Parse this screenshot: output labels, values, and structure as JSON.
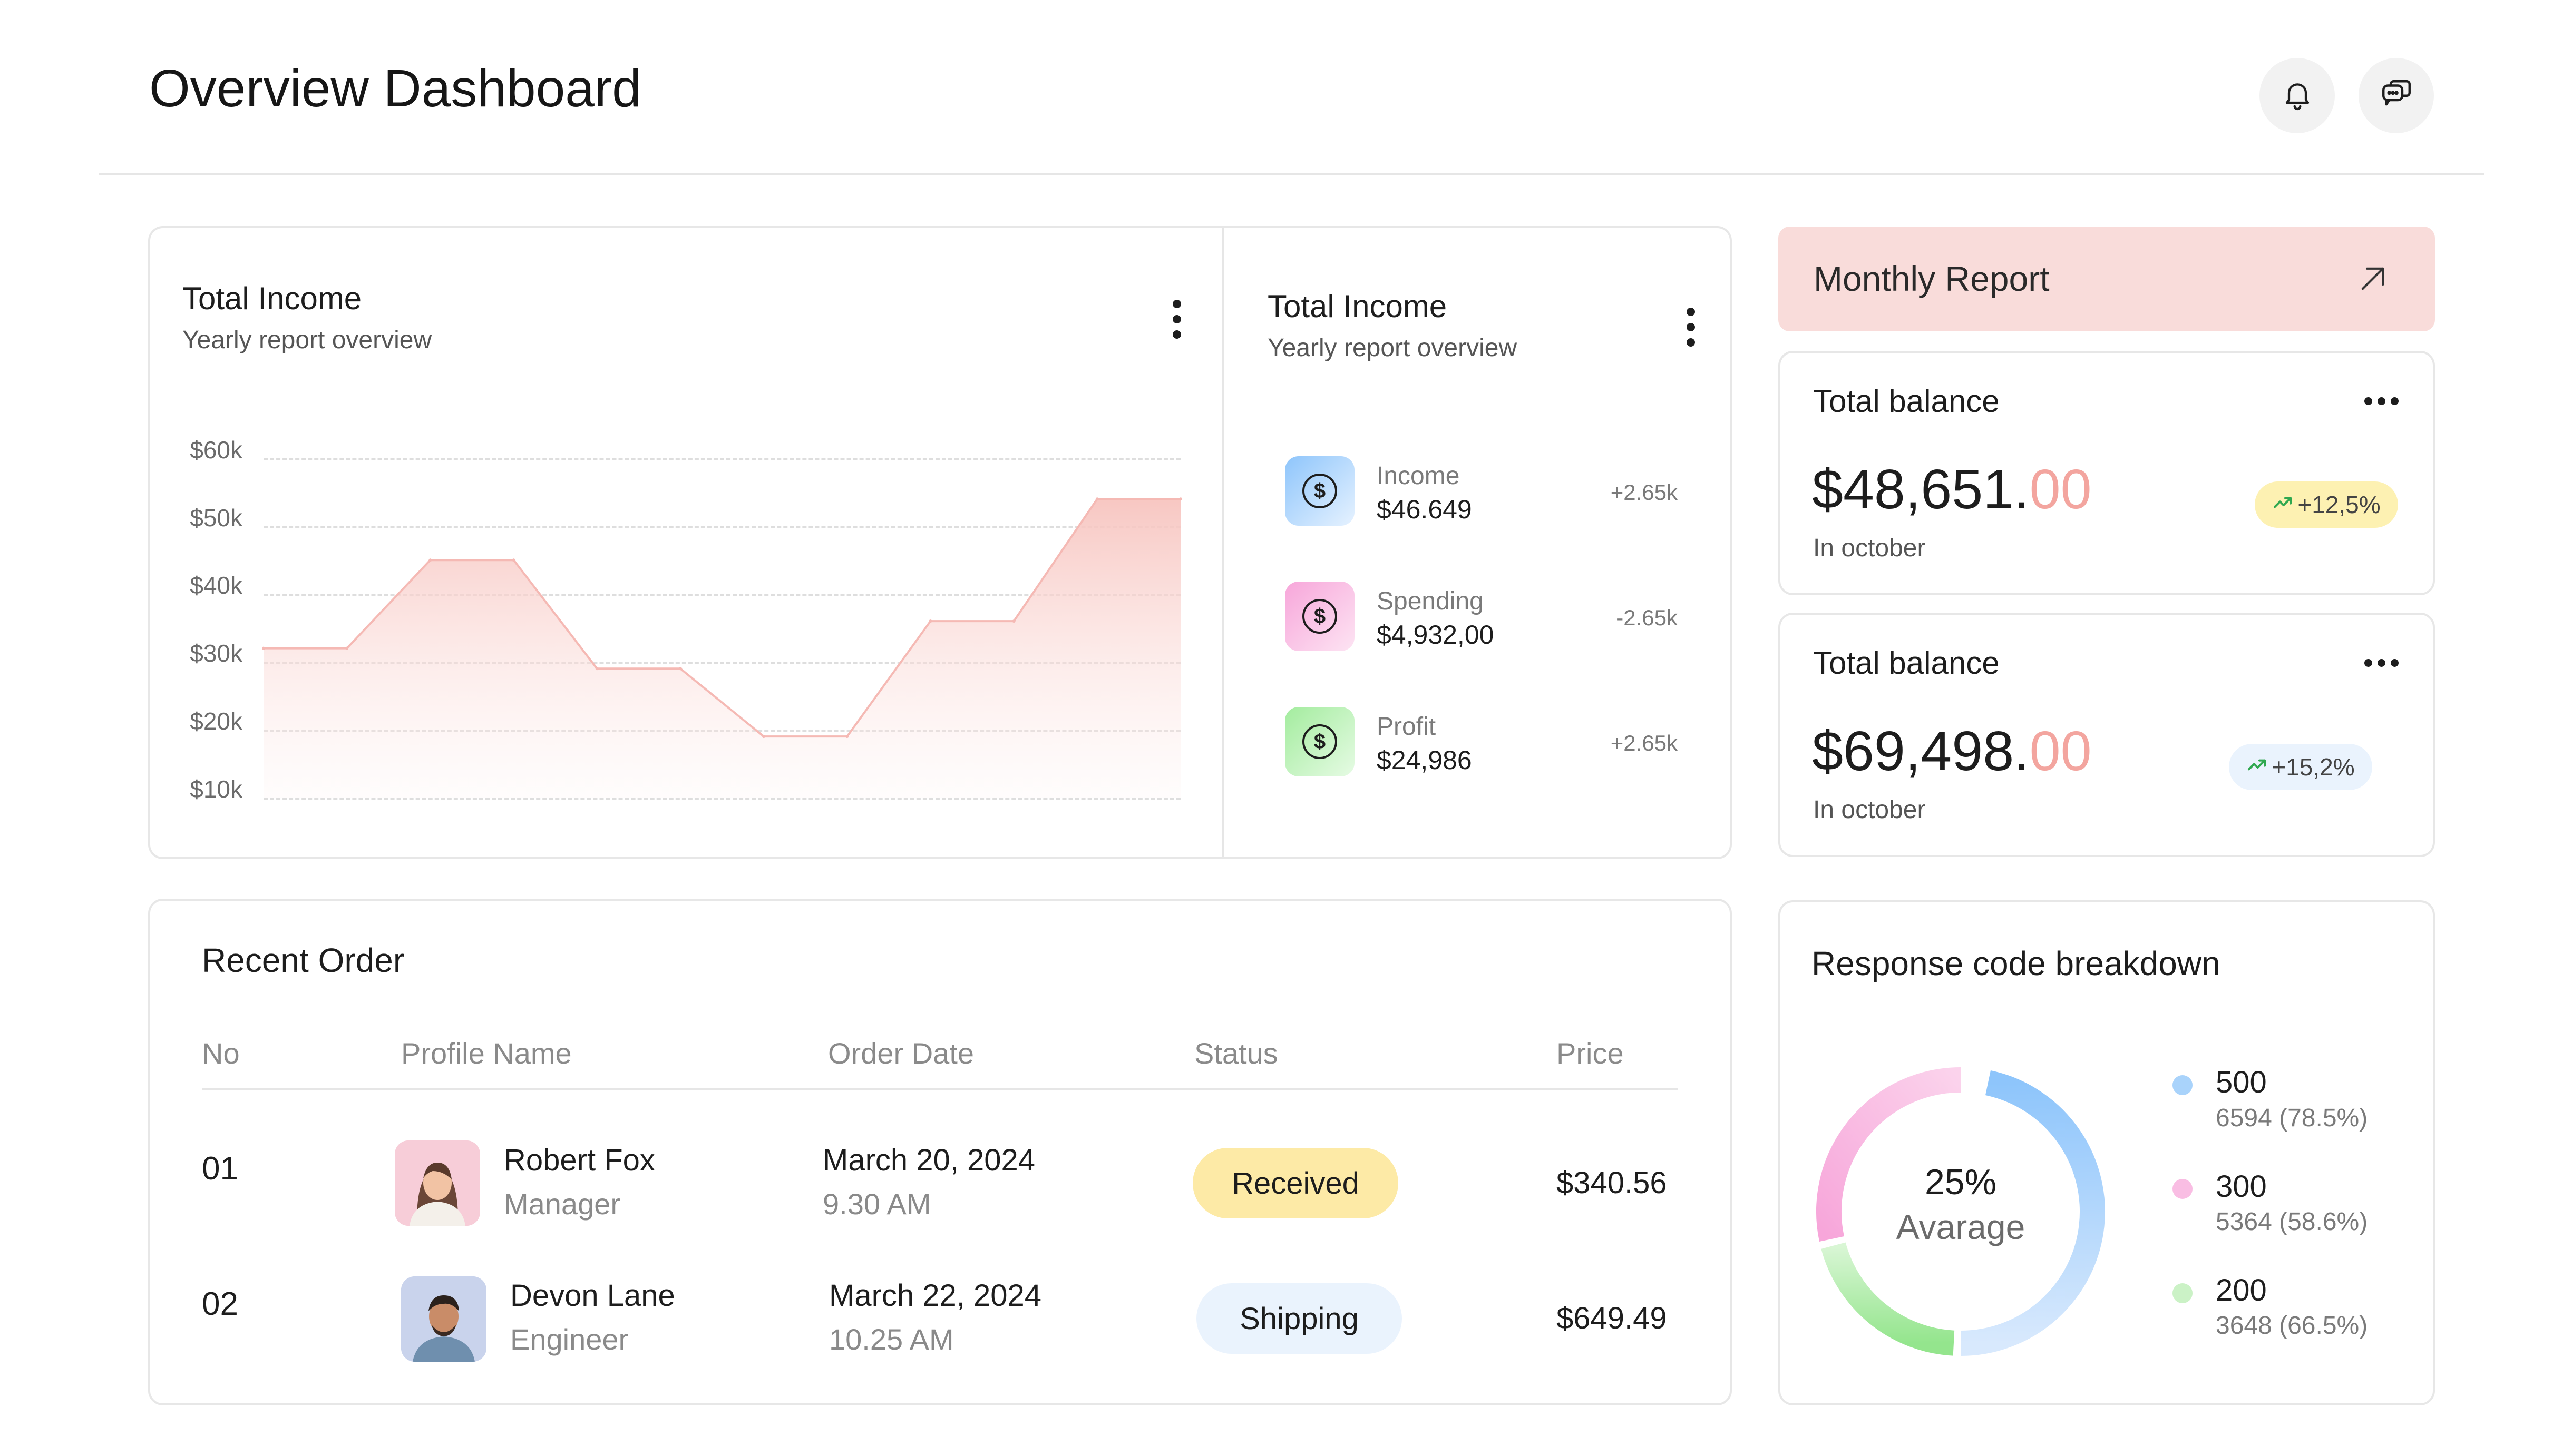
{
  "header": {
    "title": "Overview Dashboard",
    "notifications_icon": "bell-icon",
    "messages_icon": "chat-icon"
  },
  "income_chart": {
    "title": "Total Income",
    "subtitle": "Yearly report overview",
    "menu_icon": "kebab-menu-icon",
    "y_ticks": [
      "$60k",
      "$50k",
      "$40k",
      "$30k",
      "$20k",
      "$10k"
    ]
  },
  "chart_data": {
    "type": "area",
    "title": "Total Income",
    "subtitle": "Yearly report overview",
    "xlabel": "",
    "ylabel": "",
    "ylim": [
      10000,
      60000
    ],
    "y_ticks": [
      "$60k",
      "$50k",
      "$40k",
      "$30k",
      "$20k",
      "$10k"
    ],
    "y_tick_values": [
      60000,
      50000,
      40000,
      30000,
      20000,
      10000
    ],
    "grid": true,
    "series": [
      {
        "values": [
          32000,
          32000,
          45000,
          45000,
          29000,
          29000,
          19000,
          19000,
          36000,
          36000,
          54000,
          54000
        ],
        "color": "#f5b9b4"
      }
    ]
  },
  "income_summary": {
    "title": "Total Income",
    "subtitle": "Yearly report overview",
    "menu_icon": "kebab-menu-icon",
    "items": [
      {
        "label": "Income",
        "value": "$46.649",
        "delta": "+2.65k",
        "icon": "dollar-icon",
        "color": "#8ec5fb"
      },
      {
        "label": "Spending",
        "value": "$4,932,00",
        "delta": "-2.65k",
        "icon": "dollar-icon",
        "color": "#f7a6da"
      },
      {
        "label": "Profit",
        "value": "$24,986",
        "delta": "+2.65k",
        "icon": "dollar-icon",
        "color": "#a3ec9e"
      }
    ]
  },
  "monthly_report": {
    "label": "Monthly Report",
    "icon": "arrow-up-right-icon"
  },
  "balances": [
    {
      "title": "Total balance",
      "amount_main": "$48,651.",
      "amount_cents": "00",
      "note": "In october",
      "change": "+12,5%",
      "change_icon": "trend-up-icon",
      "pill_color": "#fdf1b2"
    },
    {
      "title": "Total balance",
      "amount_main": "$69,498.",
      "amount_cents": "00",
      "note": "In october",
      "change": "+15,2%",
      "change_icon": "trend-up-icon",
      "pill_color": "#eaf3fd"
    }
  ],
  "recent_order": {
    "title": "Recent Order",
    "columns": [
      "No",
      "Profile Name",
      "Order Date",
      "Status",
      "Price"
    ],
    "rows": [
      {
        "no": "01",
        "name": "Robert Fox",
        "role": "Manager",
        "date": "March 20, 2024",
        "time": "9.30 AM",
        "status": "Received",
        "price": "$340.56"
      },
      {
        "no": "02",
        "name": "Devon Lane",
        "role": "Engineer",
        "date": "March 22, 2024",
        "time": "10.25 AM",
        "status": "Shipping",
        "price": "$649.49"
      }
    ]
  },
  "response_breakdown": {
    "title": "Response code breakdown",
    "center_value": "25%",
    "center_label": "Avarage",
    "items": [
      {
        "code": "500",
        "detail": "6594 (78.5%)",
        "color": "#8ec5fb"
      },
      {
        "code": "300",
        "detail": "5364 (58.6%)",
        "color": "#f7a6da"
      },
      {
        "code": "200",
        "detail": "3648 (66.5%)",
        "color": "#a3ec9e"
      }
    ]
  }
}
